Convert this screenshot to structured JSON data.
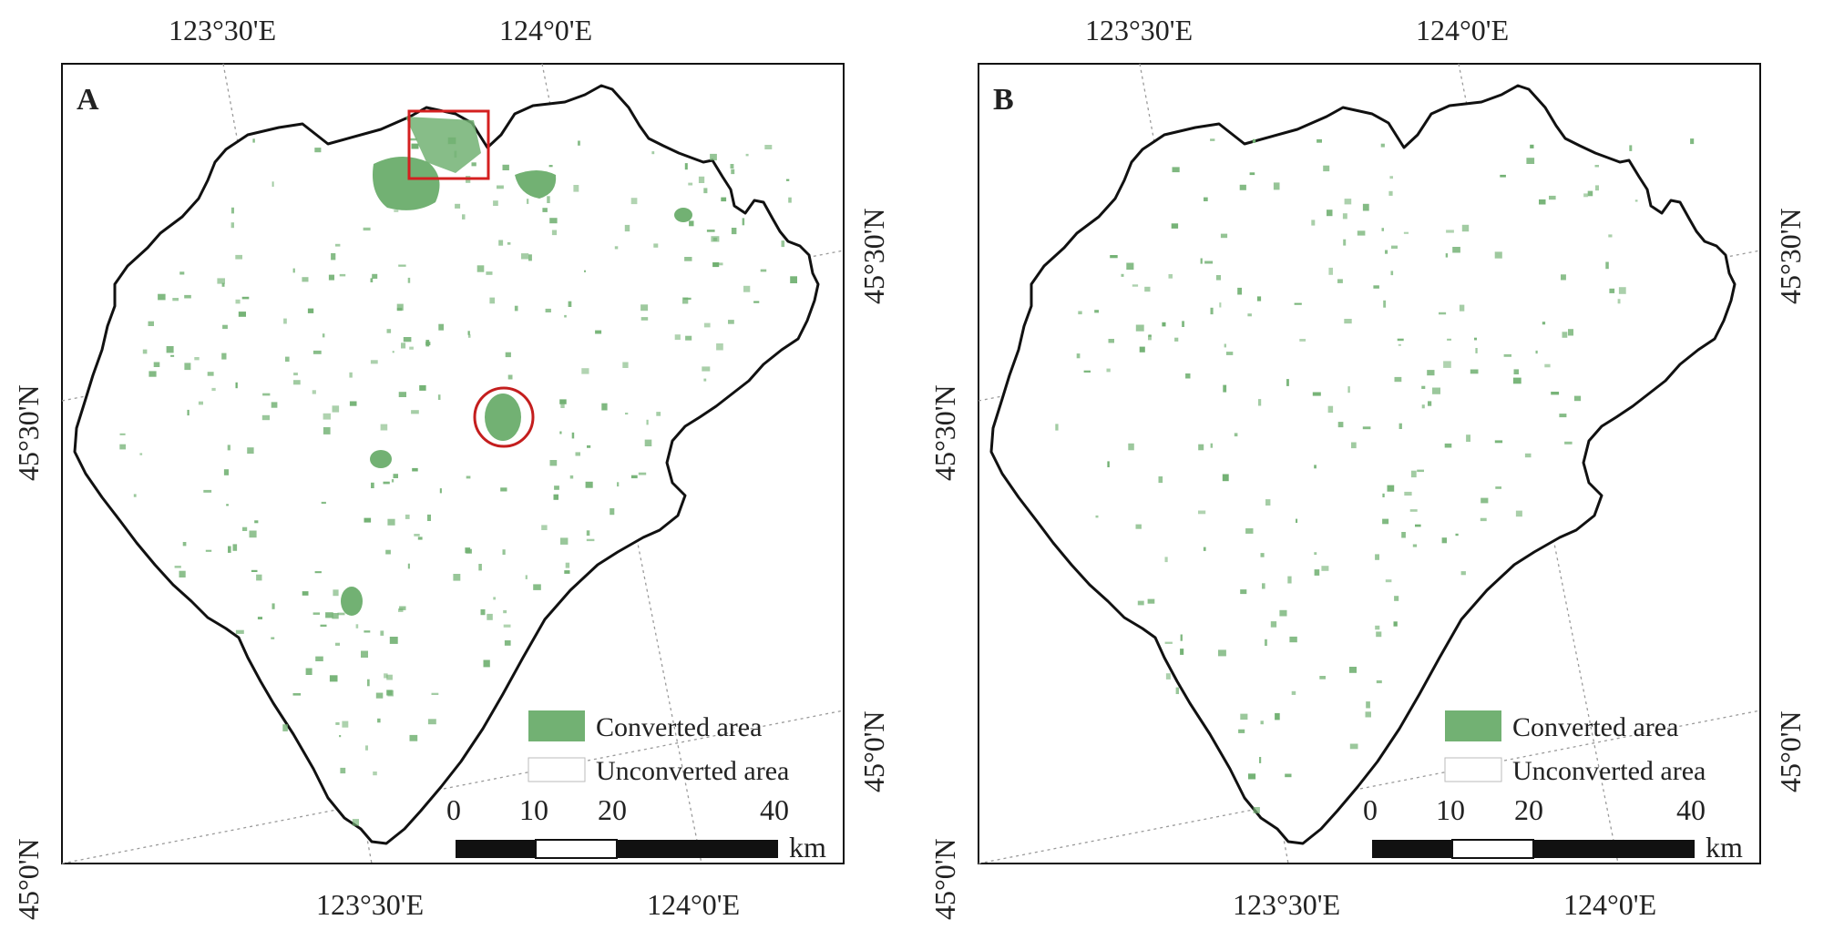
{
  "panels": [
    {
      "id": "A",
      "label": "A",
      "highlights": {
        "rectangle": true,
        "circle": true
      }
    },
    {
      "id": "B",
      "label": "B",
      "highlights": {
        "rectangle": false,
        "circle": false
      }
    }
  ],
  "axes": {
    "top_ticks": [
      "123°30'E",
      "124°0'E"
    ],
    "bottom_ticks": [
      "123°30'E",
      "124°0'E"
    ],
    "left_ticks": [
      "45°30'N",
      "45°0'N"
    ],
    "right_ticks": [
      "45°30'N",
      "45°0'N"
    ]
  },
  "legend": {
    "converted": "Converted area",
    "unconverted": "Unconverted area"
  },
  "scalebar": {
    "ticks": [
      "0",
      "10",
      "20",
      "40"
    ],
    "unit": "km"
  },
  "colors": {
    "converted": "#72b173",
    "boundary": "#111111",
    "highlight": "#d42020",
    "graticule": "#9a9a9a",
    "frame": "#111111"
  }
}
